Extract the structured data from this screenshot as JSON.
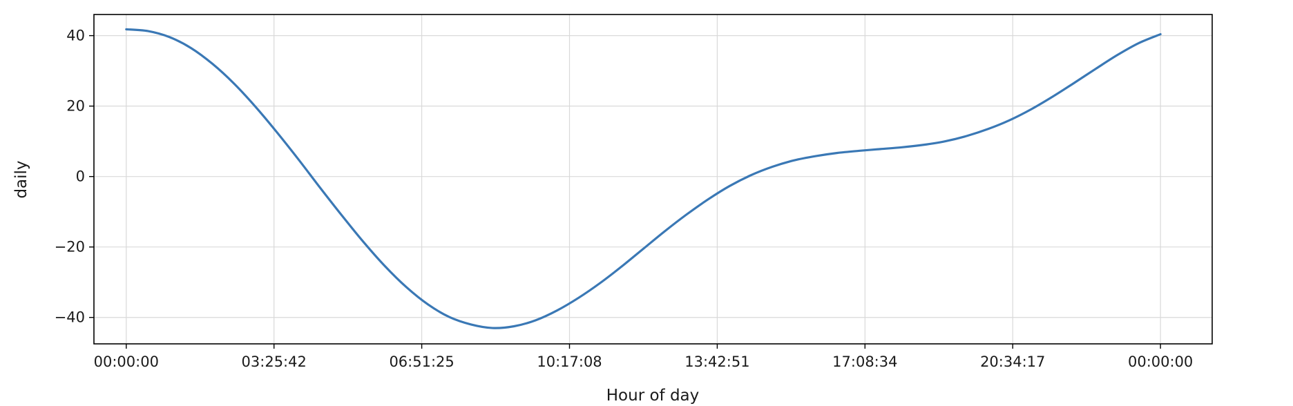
{
  "chart_data": {
    "type": "line",
    "xlabel": "Hour of day",
    "ylabel": "daily",
    "x_ticks": [
      "00:00:00",
      "03:25:42",
      "06:51:25",
      "10:17:08",
      "13:42:51",
      "17:08:34",
      "20:34:17",
      "00:00:00"
    ],
    "y_ticks": [
      40,
      20,
      0,
      -20,
      -40
    ],
    "xlim_hours": [
      -0.75,
      25.2
    ],
    "ylim": [
      -47.5,
      46
    ],
    "grid": true,
    "line_color": "#3a78b5",
    "series": [
      {
        "x": [
          0,
          0.5,
          1,
          1.5,
          2,
          2.5,
          3,
          3.5,
          4,
          4.5,
          5,
          5.5,
          6,
          6.5,
          7,
          7.5,
          8,
          8.5,
          9,
          9.5,
          10,
          10.5,
          11,
          11.5,
          12,
          12.5,
          13,
          13.5,
          14,
          14.5,
          15,
          15.5,
          16,
          16.5,
          17,
          17.5,
          18,
          18.5,
          19,
          19.5,
          20,
          20.5,
          21,
          21.5,
          22,
          22.5,
          23,
          23.5,
          24
        ],
        "values": [
          41.8,
          41.3,
          39.6,
          36.5,
          32.0,
          26.4,
          19.8,
          12.5,
          4.8,
          -3.2,
          -11.0,
          -18.5,
          -25.4,
          -31.4,
          -36.3,
          -39.9,
          -42.0,
          -43.0,
          -42.5,
          -40.8,
          -38.0,
          -34.4,
          -30.2,
          -25.5,
          -20.5,
          -15.5,
          -10.8,
          -6.5,
          -2.7,
          0.4,
          2.8,
          4.6,
          5.8,
          6.7,
          7.3,
          7.8,
          8.3,
          9.0,
          10.0,
          11.5,
          13.5,
          16.0,
          19.1,
          22.7,
          26.6,
          30.6,
          34.5,
          37.9,
          40.4
        ]
      }
    ]
  }
}
